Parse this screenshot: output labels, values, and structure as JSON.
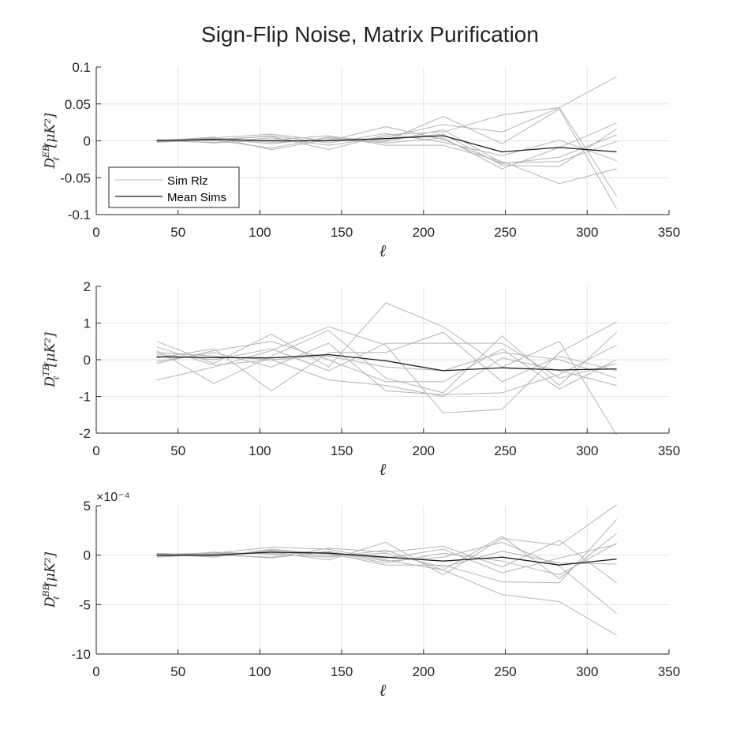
{
  "figure": {
    "title": "Sign-Flip Noise, Matrix Purification"
  },
  "colors": {
    "realization": "#b4b4b4",
    "mean": "#1a1a1a",
    "grid": "#e3e3e3",
    "axis": "#262626"
  },
  "legend": {
    "entries": [
      "Sim Rlz",
      "Mean Sims"
    ],
    "placement": "lower-left"
  },
  "chart_data": [
    {
      "type": "line",
      "panel": "EB",
      "ylabel_base": "D",
      "ylabel_sup": "EB",
      "ylabel_sub": "ℓ",
      "ylabel_units": "[μK²]",
      "xlabel": "ℓ",
      "xlim": [
        0,
        350
      ],
      "ylim": [
        -0.1,
        0.1
      ],
      "grid": true,
      "xticks": [
        0,
        50,
        100,
        150,
        200,
        250,
        300,
        350
      ],
      "xtick_labels": [
        "0",
        "50",
        "100",
        "150",
        "200",
        "250",
        "300",
        "350"
      ],
      "yticks": [
        -0.1,
        -0.05,
        0,
        0.05,
        0.1
      ],
      "ytick_labels": [
        "-0.1",
        "-0.05",
        "0",
        "0.05",
        "0.1"
      ],
      "exponent_label": "",
      "x": [
        37,
        72,
        107,
        142,
        177,
        212,
        248,
        283,
        318
      ],
      "series": [
        {
          "name": "Sim Rlz",
          "values": [
            0.001,
            0.004,
            0.009,
            0.0,
            0.019,
            0.002,
            -0.031,
            -0.022,
            0.008
          ]
        },
        {
          "name": "Sim Rlz",
          "values": [
            -0.002,
            0.001,
            -0.01,
            0.005,
            0.0,
            0.033,
            -0.004,
            0.043,
            -0.092
          ]
        },
        {
          "name": "Sim Rlz",
          "values": [
            0.0,
            -0.002,
            0.004,
            -0.006,
            0.005,
            0.022,
            0.012,
            0.045,
            -0.075
          ]
        },
        {
          "name": "Sim Rlz",
          "values": [
            0.001,
            0.003,
            -0.004,
            0.004,
            -0.003,
            0.004,
            -0.038,
            -0.009,
            0.024
          ]
        },
        {
          "name": "Sim Rlz",
          "values": [
            -0.001,
            0.002,
            0.006,
            -0.012,
            0.008,
            0.012,
            0.035,
            0.045,
            0.087
          ]
        },
        {
          "name": "Sim Rlz",
          "values": [
            0.002,
            -0.003,
            0.001,
            0.007,
            -0.006,
            -0.006,
            -0.028,
            -0.058,
            -0.038
          ]
        },
        {
          "name": "Sim Rlz",
          "values": [
            0.0,
            0.005,
            -0.012,
            0.002,
            0.003,
            0.009,
            -0.033,
            -0.035,
            0.016
          ]
        },
        {
          "name": "Sim Rlz",
          "values": [
            0.001,
            0.0,
            0.007,
            -0.003,
            0.01,
            -0.002,
            -0.02,
            0.001,
            -0.027
          ]
        },
        {
          "name": "Sim Rlz",
          "values": [
            -0.001,
            0.004,
            -0.002,
            0.001,
            -0.001,
            0.015,
            -0.03,
            -0.028,
            -0.001
          ]
        },
        {
          "name": "Mean Sims",
          "values": [
            0.0,
            0.002,
            0.0,
            0.0,
            0.003,
            0.007,
            -0.015,
            -0.009,
            -0.015
          ]
        }
      ]
    },
    {
      "type": "line",
      "panel": "TB",
      "ylabel_base": "D",
      "ylabel_sup": "TB",
      "ylabel_sub": "ℓ",
      "ylabel_units": "[μK²]",
      "xlabel": "ℓ",
      "xlim": [
        0,
        350
      ],
      "ylim": [
        -2,
        2
      ],
      "grid": true,
      "xticks": [
        0,
        50,
        100,
        150,
        200,
        250,
        300,
        350
      ],
      "xtick_labels": [
        "0",
        "50",
        "100",
        "150",
        "200",
        "250",
        "300",
        "350"
      ],
      "yticks": [
        -2,
        -1,
        0,
        1,
        2
      ],
      "ytick_labels": [
        "-2",
        "-1",
        "0",
        "1",
        "2"
      ],
      "exponent_label": "",
      "x": [
        37,
        72,
        107,
        142,
        177,
        212,
        248,
        283,
        318
      ],
      "series": [
        {
          "name": "Sim Rlz",
          "values": [
            0.5,
            -0.1,
            0.7,
            -0.2,
            1.55,
            0.9,
            -0.2,
            0.5,
            -2.05
          ]
        },
        {
          "name": "Sim Rlz",
          "values": [
            -0.55,
            -0.2,
            0.25,
            0.9,
            0.4,
            -1.45,
            -1.35,
            0.2,
            1.03
          ]
        },
        {
          "name": "Sim Rlz",
          "values": [
            0.25,
            -0.65,
            0.1,
            0.8,
            -0.5,
            -0.9,
            0.65,
            -0.7,
            0.75
          ]
        },
        {
          "name": "Sim Rlz",
          "values": [
            0.05,
            0.3,
            -0.85,
            0.2,
            0.2,
            0.75,
            -0.6,
            0.1,
            -0.3
          ]
        },
        {
          "name": "Sim Rlz",
          "values": [
            -0.1,
            0.25,
            0.5,
            0.0,
            -0.6,
            -0.6,
            0.3,
            -0.8,
            0.0
          ]
        },
        {
          "name": "Sim Rlz",
          "values": [
            0.35,
            -0.15,
            0.0,
            -0.55,
            -0.7,
            -1.0,
            0.05,
            -0.3,
            -0.7
          ]
        },
        {
          "name": "Sim Rlz",
          "values": [
            0.15,
            0.0,
            0.3,
            -0.3,
            0.45,
            0.45,
            0.45,
            -0.5,
            -0.1
          ]
        },
        {
          "name": "Sim Rlz",
          "values": [
            -0.05,
            0.2,
            -0.2,
            0.45,
            -0.85,
            -0.95,
            -0.9,
            -0.4,
            0.4
          ]
        },
        {
          "name": "Sim Rlz",
          "values": [
            0.2,
            0.1,
            0.0,
            0.1,
            -0.2,
            -0.3,
            0.2,
            0.0,
            -0.5
          ]
        },
        {
          "name": "Mean Sims",
          "values": [
            0.08,
            0.06,
            0.05,
            0.14,
            -0.03,
            -0.3,
            -0.22,
            -0.28,
            -0.25
          ]
        }
      ]
    },
    {
      "type": "line",
      "panel": "BB",
      "ylabel_base": "D",
      "ylabel_sup": "BB",
      "ylabel_sub": "ℓ",
      "ylabel_units": "[μK²]",
      "xlabel": "ℓ",
      "xlim": [
        0,
        350
      ],
      "ylim": [
        -10,
        5
      ],
      "grid": true,
      "xticks": [
        0,
        50,
        100,
        150,
        200,
        250,
        300,
        350
      ],
      "xtick_labels": [
        "0",
        "50",
        "100",
        "150",
        "200",
        "250",
        "300",
        "350"
      ],
      "yticks": [
        -10,
        -5,
        0,
        5
      ],
      "ytick_labels": [
        "-10",
        "-5",
        "0",
        "5"
      ],
      "exponent_label": "×10⁻⁴",
      "x": [
        37,
        72,
        107,
        142,
        177,
        212,
        248,
        283,
        318
      ],
      "series": [
        {
          "name": "Sim Rlz",
          "values": [
            0.1,
            0.2,
            0.8,
            0.6,
            -0.5,
            -1.5,
            -4.0,
            -4.7,
            -8.1
          ]
        },
        {
          "name": "Sim Rlz",
          "values": [
            -0.2,
            0.1,
            0.3,
            -0.5,
            1.3,
            -2.0,
            1.7,
            1.0,
            5.1
          ]
        },
        {
          "name": "Sim Rlz",
          "values": [
            0.0,
            -0.1,
            0.5,
            0.2,
            -1.0,
            -1.0,
            -2.7,
            -2.8,
            3.6
          ]
        },
        {
          "name": "Sim Rlz",
          "values": [
            0.2,
            0.0,
            -0.2,
            0.7,
            0.3,
            0.9,
            -1.2,
            1.5,
            -2.8
          ]
        },
        {
          "name": "Sim Rlz",
          "values": [
            -0.1,
            0.3,
            0.1,
            -0.2,
            0.5,
            -1.5,
            1.9,
            -2.4,
            2.2
          ]
        },
        {
          "name": "Sim Rlz",
          "values": [
            0.1,
            -0.2,
            0.6,
            0.1,
            -0.3,
            0.6,
            -1.8,
            -0.3,
            1.1
          ]
        },
        {
          "name": "Sim Rlz",
          "values": [
            0.0,
            0.1,
            -0.3,
            0.4,
            -0.6,
            -0.2,
            1.3,
            -1.1,
            -5.9
          ]
        },
        {
          "name": "Sim Rlz",
          "values": [
            -0.1,
            0.0,
            0.4,
            -0.1,
            0.2,
            -1.2,
            0.4,
            -0.8,
            -0.9
          ]
        },
        {
          "name": "Sim Rlz",
          "values": [
            0.1,
            0.2,
            0.2,
            0.3,
            -0.8,
            0.2,
            -0.6,
            -2.0,
            1.2
          ]
        },
        {
          "name": "Mean Sims",
          "values": [
            0.0,
            0.0,
            0.3,
            0.2,
            -0.2,
            -0.6,
            -0.2,
            -1.0,
            -0.4
          ]
        }
      ]
    }
  ]
}
